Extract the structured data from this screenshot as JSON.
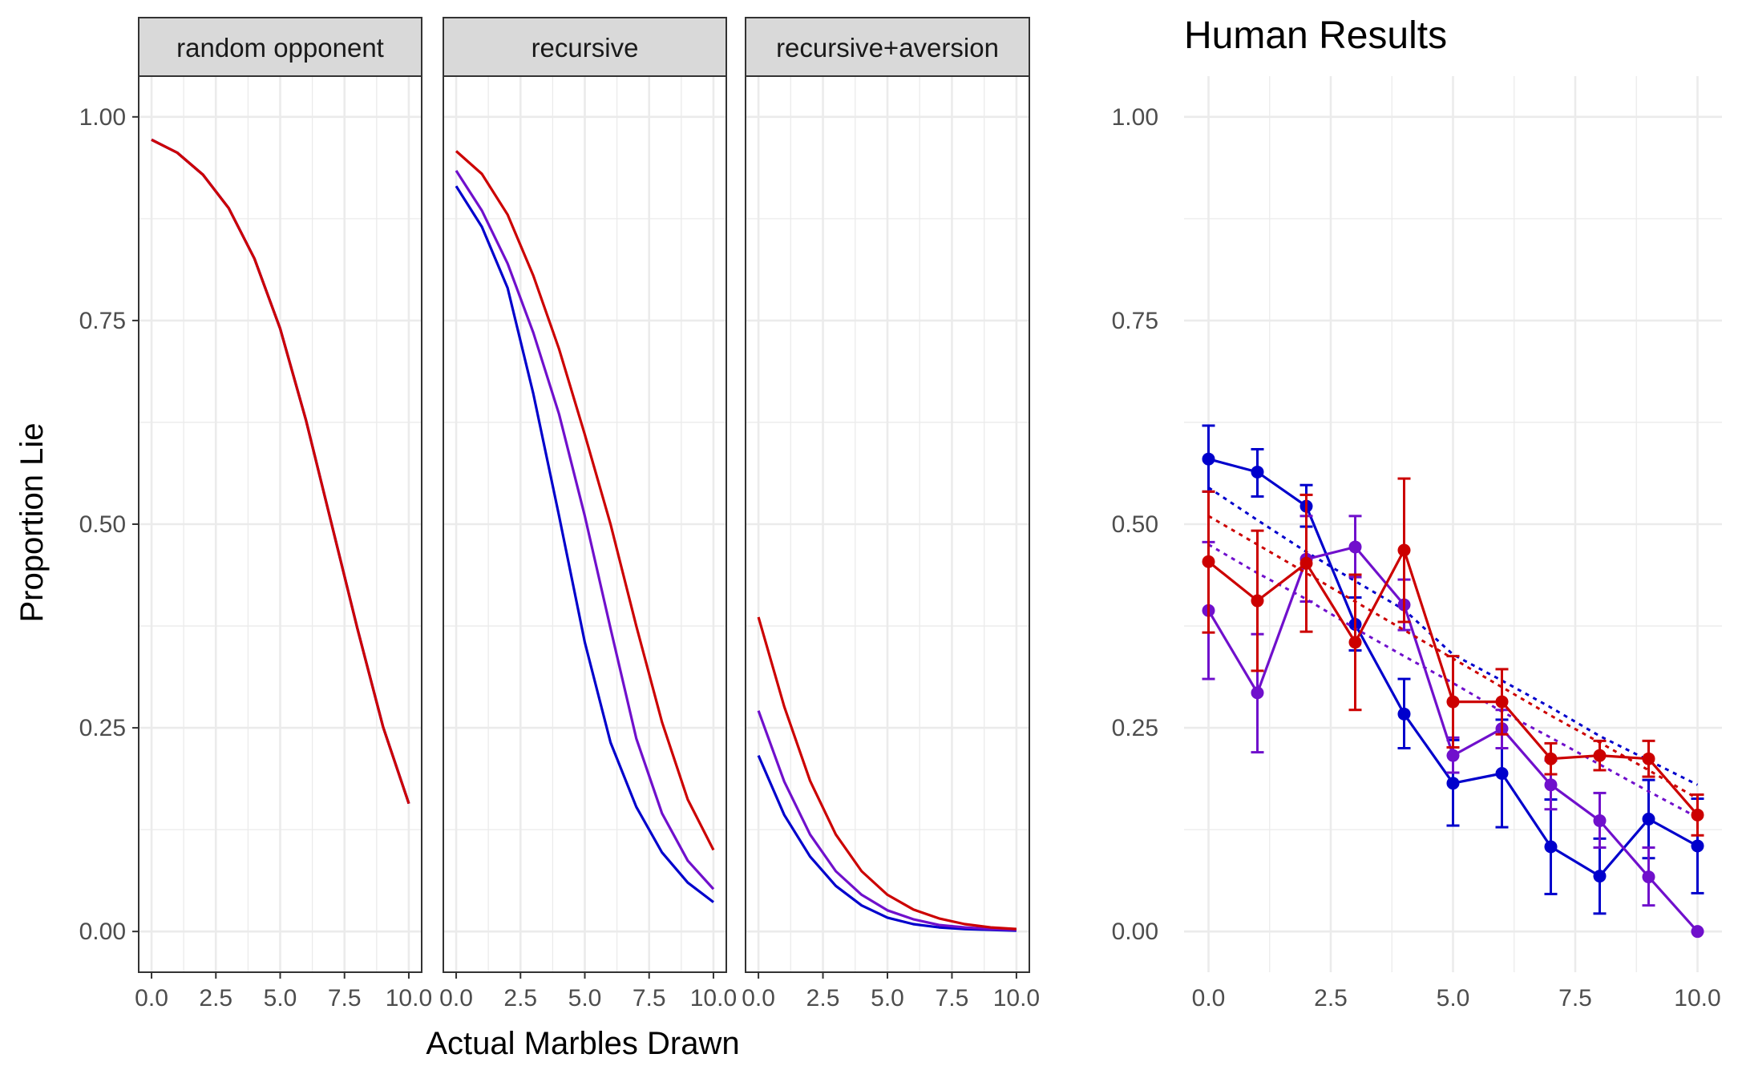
{
  "chart_data": [
    {
      "type": "line",
      "panel": "random opponent",
      "x": [
        0,
        1,
        2,
        3,
        4,
        5,
        6,
        7,
        8,
        9,
        10
      ],
      "xlim": [
        -0.5,
        10.5
      ],
      "ylim": [
        -0.05,
        1.05
      ],
      "xticks": [
        "0.0",
        "2.5",
        "5.0",
        "7.5",
        "10.0"
      ],
      "yticks": [
        "0.00",
        "0.25",
        "0.50",
        "0.75",
        "1.00"
      ],
      "ylabel": "Proportion Lie",
      "series": [
        {
          "color": "#0000CC",
          "values": [
            0.972,
            0.956,
            0.929,
            0.888,
            0.826,
            0.74,
            0.628,
            0.5,
            0.372,
            0.251,
            0.157
          ]
        },
        {
          "color": "#7010CC",
          "values": [
            0.972,
            0.956,
            0.929,
            0.888,
            0.826,
            0.74,
            0.628,
            0.5,
            0.372,
            0.251,
            0.157
          ]
        },
        {
          "color": "#CC0000",
          "values": [
            0.972,
            0.956,
            0.929,
            0.888,
            0.826,
            0.74,
            0.628,
            0.5,
            0.372,
            0.251,
            0.157
          ]
        }
      ]
    },
    {
      "type": "line",
      "panel": "recursive",
      "x": [
        0,
        1,
        2,
        3,
        4,
        5,
        6,
        7,
        8,
        9,
        10
      ],
      "xlim": [
        -0.5,
        10.5
      ],
      "ylim": [
        -0.05,
        1.05
      ],
      "xticks": [
        "0.0",
        "2.5",
        "5.0",
        "7.5",
        "10.0"
      ],
      "series": [
        {
          "color": "#0000CC",
          "values": [
            0.915,
            0.865,
            0.79,
            0.66,
            0.51,
            0.355,
            0.232,
            0.153,
            0.097,
            0.06,
            0.036
          ]
        },
        {
          "color": "#7010CC",
          "values": [
            0.934,
            0.885,
            0.82,
            0.735,
            0.635,
            0.51,
            0.372,
            0.237,
            0.145,
            0.087,
            0.052
          ]
        },
        {
          "color": "#CC0000",
          "values": [
            0.958,
            0.93,
            0.88,
            0.805,
            0.715,
            0.61,
            0.5,
            0.375,
            0.257,
            0.162,
            0.1
          ]
        }
      ]
    },
    {
      "type": "line",
      "panel": "recursive+aversion",
      "x": [
        0,
        1,
        2,
        3,
        4,
        5,
        6,
        7,
        8,
        9,
        10
      ],
      "xlim": [
        -0.5,
        10.5
      ],
      "ylim": [
        -0.05,
        1.05
      ],
      "xticks": [
        "0.0",
        "2.5",
        "5.0",
        "7.5",
        "10.0"
      ],
      "series": [
        {
          "color": "#0000CC",
          "values": [
            0.216,
            0.143,
            0.092,
            0.056,
            0.032,
            0.017,
            0.009,
            0.005,
            0.003,
            0.002,
            0.001
          ]
        },
        {
          "color": "#7010CC",
          "values": [
            0.271,
            0.184,
            0.119,
            0.074,
            0.045,
            0.026,
            0.015,
            0.008,
            0.005,
            0.003,
            0.002
          ]
        },
        {
          "color": "#CC0000",
          "values": [
            0.386,
            0.276,
            0.185,
            0.119,
            0.074,
            0.045,
            0.027,
            0.016,
            0.009,
            0.005,
            0.003
          ]
        }
      ]
    },
    {
      "type": "line",
      "title": "Human Results",
      "x": [
        0,
        1,
        2,
        3,
        4,
        5,
        6,
        7,
        8,
        9,
        10
      ],
      "xlim": [
        -0.5,
        10.5
      ],
      "ylim": [
        -0.05,
        1.05
      ],
      "xticks": [
        "0.0",
        "2.5",
        "5.0",
        "7.5",
        "10.0"
      ],
      "yticks": [
        "0.00",
        "0.25",
        "0.50",
        "0.75",
        "1.00"
      ],
      "series": [
        {
          "color": "#0000CC",
          "values": [
            0.58,
            0.564,
            0.522,
            0.377,
            0.267,
            0.182,
            0.194,
            0.104,
            0.068,
            0.138,
            0.105
          ],
          "err_low": [
            0.54,
            0.534,
            0.497,
            0.345,
            0.225,
            0.13,
            0.128,
            0.046,
            0.022,
            0.09,
            0.047
          ],
          "err_high": [
            0.621,
            0.592,
            0.548,
            0.41,
            0.31,
            0.235,
            0.26,
            0.162,
            0.114,
            0.186,
            0.163
          ],
          "trend": [
            0.545,
            0.505,
            0.466,
            0.43,
            0.395,
            0.34,
            0.308,
            0.275,
            0.24,
            0.21,
            0.18
          ]
        },
        {
          "color": "#7010CC",
          "values": [
            0.394,
            0.293,
            0.457,
            0.472,
            0.401,
            0.216,
            0.249,
            0.18,
            0.136,
            0.067,
            0.0
          ],
          "err_low": [
            0.31,
            0.22,
            0.405,
            0.435,
            0.37,
            0.195,
            0.225,
            0.15,
            0.103,
            0.032,
            0.0
          ],
          "err_high": [
            0.478,
            0.365,
            0.51,
            0.51,
            0.432,
            0.238,
            0.272,
            0.21,
            0.17,
            0.103,
            0.0
          ],
          "trend": [
            0.475,
            0.44,
            0.408,
            0.372,
            0.338,
            0.305,
            0.27,
            0.238,
            0.205,
            0.172,
            0.14
          ]
        },
        {
          "color": "#CC0000",
          "values": [
            0.454,
            0.406,
            0.452,
            0.355,
            0.468,
            0.282,
            0.282,
            0.212,
            0.216,
            0.212,
            0.143
          ],
          "err_low": [
            0.367,
            0.32,
            0.368,
            0.272,
            0.38,
            0.226,
            0.242,
            0.193,
            0.198,
            0.19,
            0.118
          ],
          "err_high": [
            0.54,
            0.492,
            0.536,
            0.438,
            0.556,
            0.338,
            0.322,
            0.231,
            0.234,
            0.234,
            0.168
          ],
          "trend": [
            0.51,
            0.475,
            0.44,
            0.405,
            0.37,
            0.335,
            0.3,
            0.265,
            0.232,
            0.198,
            0.163
          ]
        }
      ]
    }
  ],
  "strips": [
    "random opponent",
    "recursive",
    "recursive+aversion"
  ],
  "xlabel": "Actual Marbles Drawn",
  "ylabel": "Proportion Lie",
  "human_title": "Human Results"
}
